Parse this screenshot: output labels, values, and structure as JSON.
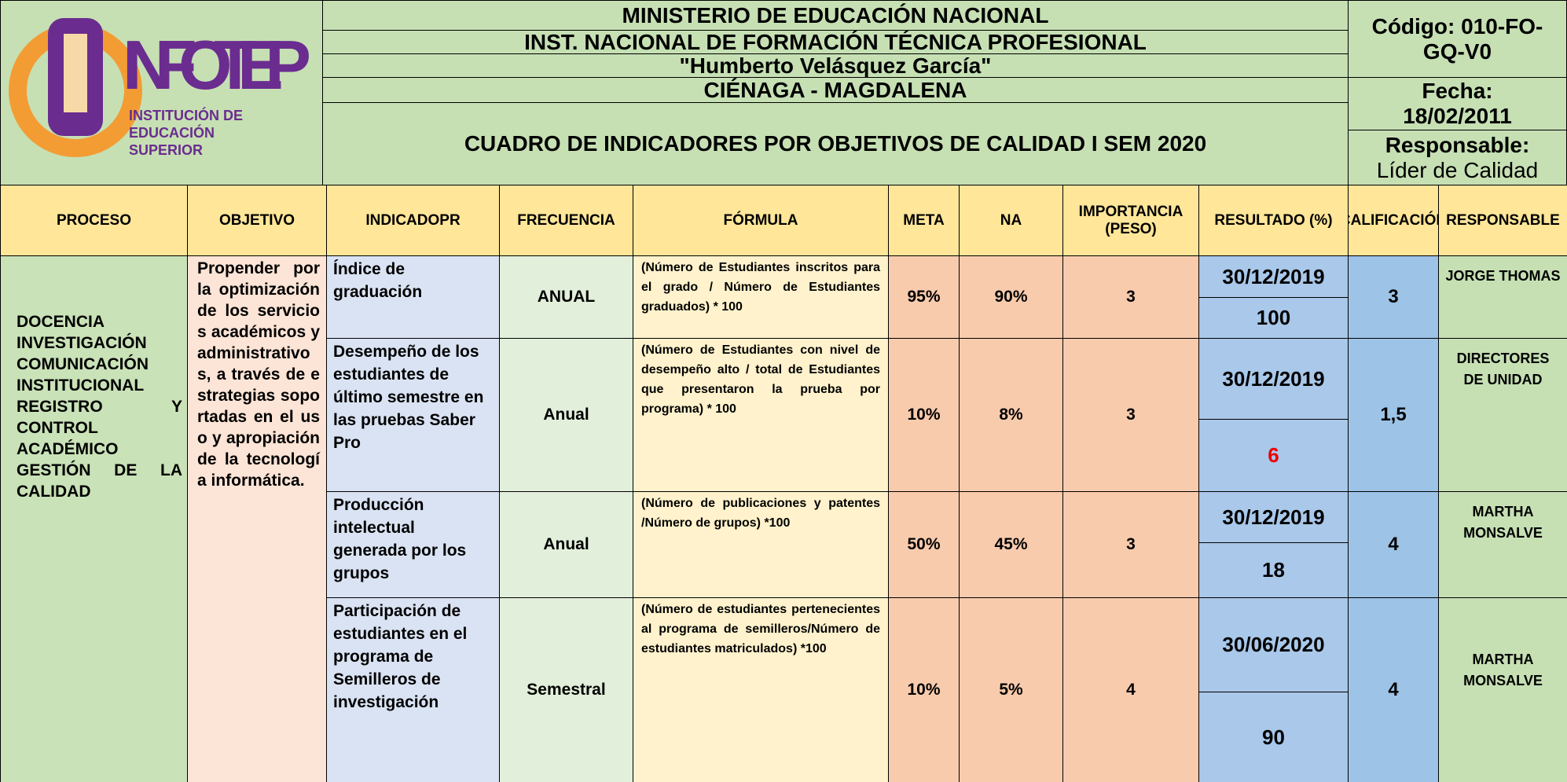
{
  "header": {
    "logo": {
      "name": "INFOTEP",
      "subtitle": [
        "INSTITUCIÓN DE",
        "EDUCACIÓN",
        "SUPERIOR"
      ]
    },
    "titles": [
      "MINISTERIO DE EDUCACIÓN NACIONAL",
      "INST. NACIONAL DE FORMACIÓN TÉCNICA PROFESIONAL",
      "\"Humberto Velásquez García\"",
      "CIÉNAGA - MAGDALENA"
    ],
    "main_title": "CUADRO DE INDICADORES POR OBJETIVOS DE CALIDAD I SEM 2020",
    "codigo": "Código: 010-FO-GQ-V0",
    "fecha": "Fecha: 18/02/2011",
    "responsable_label": "Responsable:",
    "responsable": "Líder de Calidad"
  },
  "table": {
    "columns": [
      "PROCESO",
      "OBJETIVO",
      "INDICADOPR",
      "FRECUENCIA",
      "FÓRMULA",
      "META",
      "NA",
      "IMPORTANCIA (PESO)",
      "RESULTADO (%)",
      "CALIFICACIÓN",
      "RESPONSABLE"
    ],
    "proceso": [
      "DOCENCIA",
      "INVESTIGACIÓN",
      "COMUNICACIÓN",
      "INSTITUCIONAL",
      "REGISTRO Y",
      "CONTROL",
      "ACADÉMICO",
      "GESTIÓN DE LA",
      "CALIDAD"
    ],
    "objetivo": "Propender por la optimización de los servicios académicos y administrativos, a través de estrategias soportadas en el uso y apropiación de la tecnología informática.",
    "rows": [
      {
        "indicador": "Índice de graduación",
        "frecuencia": "ANUAL",
        "formula": "(Número de Estudiantes inscritos para el grado / Número de Estudiantes graduados) * 100",
        "meta": "95%",
        "na": "90%",
        "peso": "3",
        "fecha": "30/12/2019",
        "resultado": "100",
        "calificacion": "3",
        "responsable": "JORGE THOMAS"
      },
      {
        "indicador": "Desempeño de los estudiantes de último semestre en las pruebas Saber Pro",
        "frecuencia": "Anual",
        "formula": "(Número de Estudiantes con nivel de desempeño alto / total de Estudiantes que presentaron la prueba por programa) * 100",
        "meta": "10%",
        "na": "8%",
        "peso": "3",
        "fecha": "30/12/2019",
        "resultado": "6",
        "calificacion": "1,5",
        "responsable": "DIRECTORES DE UNIDAD"
      },
      {
        "indicador": "Producción intelectual generada por los grupos",
        "frecuencia": "Anual",
        "formula": "(Número de publicaciones y patentes /Número de grupos) *100",
        "meta": "50%",
        "na": "45%",
        "peso": "3",
        "fecha": "30/12/2019",
        "resultado": "18",
        "calificacion": "4",
        "responsable": "MARTHA MONSALVE"
      },
      {
        "indicador": "Participación de estudiantes en el programa de Semilleros de investigación",
        "frecuencia": "Semestral",
        "formula": "(Número de estudiantes pertenecientes al programa de semilleros/Número de estudiantes matriculados) *100",
        "meta": "10%",
        "na": "5%",
        "peso": "4",
        "fecha": "30/06/2020",
        "resultado": "90",
        "calificacion": "4",
        "responsable": "MARTHA MONSALVE"
      }
    ]
  }
}
